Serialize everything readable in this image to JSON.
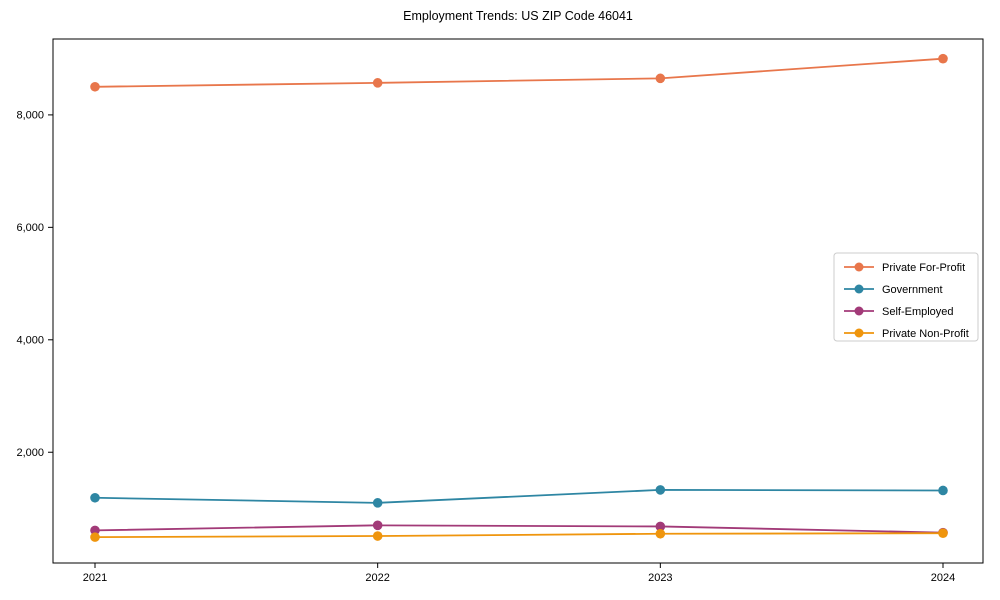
{
  "chart_data": {
    "type": "line",
    "title": "Employment Trends: US ZIP Code 46041",
    "xlabel": "",
    "ylabel": "",
    "x_tick_labels": [
      "2021",
      "2022",
      "2023",
      "2024"
    ],
    "x": [
      2021,
      2022,
      2023,
      2024
    ],
    "series": [
      {
        "name": "Private For-Profit",
        "color": "#e8764b",
        "values": [
          8500,
          8570,
          8650,
          9000
        ]
      },
      {
        "name": "Government",
        "color": "#2e86a3",
        "values": [
          1190,
          1100,
          1330,
          1320
        ]
      },
      {
        "name": "Self-Employed",
        "color": "#a23a78",
        "values": [
          610,
          700,
          680,
          570
        ]
      },
      {
        "name": "Private Non-Profit",
        "color": "#ef950d",
        "values": [
          490,
          510,
          550,
          560
        ]
      }
    ],
    "yticks": [
      {
        "value": 2000,
        "label": "2,000"
      },
      {
        "value": 4000,
        "label": "4,000"
      },
      {
        "value": 6000,
        "label": "6,000"
      },
      {
        "value": 8000,
        "label": "8,000"
      }
    ],
    "ylim": [
      30,
      9350
    ],
    "grid": false,
    "legend_position": "right-middle",
    "background_color": "#ffffff",
    "axis_color": "#000000",
    "legend_border_color": "#cccccc"
  }
}
